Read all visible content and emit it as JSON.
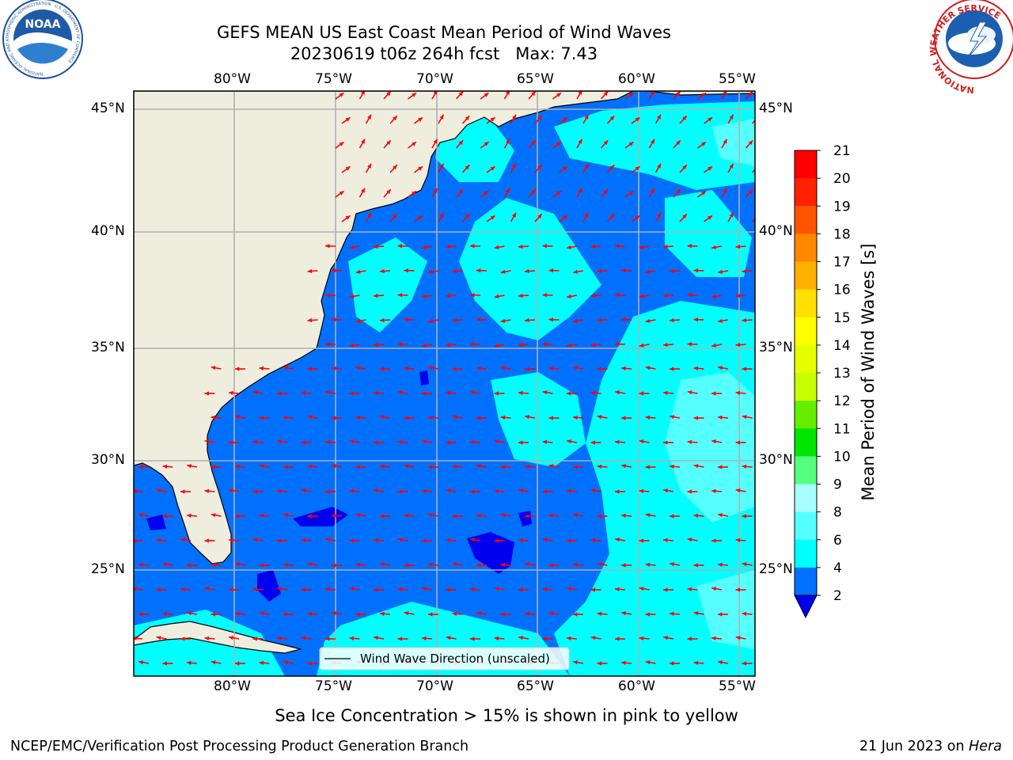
{
  "header": {
    "title_line1": "GEFS MEAN US East Coast Mean Period of Wind Waves",
    "title_line2": "20230619 t06z 264h fcst   Max: 7.43"
  },
  "logos": {
    "noaa": {
      "text": "NOAA",
      "ring_text": "NATIONAL OCEANIC AND ATMOSPHERIC ADMINISTRATION · U.S. DEPARTMENT OF COMMERCE"
    },
    "nws": {
      "ring_text": "NATIONAL WEATHER SERVICE"
    }
  },
  "map": {
    "lon_ticks": [
      "80°W",
      "75°W",
      "70°W",
      "65°W",
      "60°W",
      "55°W"
    ],
    "lat_ticks": [
      "45°N",
      "40°N",
      "35°N",
      "30°N",
      "25°N"
    ],
    "extent": {
      "lon_min": -85,
      "lon_max": -54.2,
      "lat_min": 20.5,
      "lat_max": 45.8
    },
    "legend_label": "Wind Wave Direction (unscaled)",
    "colors": {
      "land": "#efedde",
      "ocean_2_4": "#0070ff",
      "ocean_4_6": "#00ffff",
      "ocean_6_8": "#55ffff",
      "below_2": "#0000ee",
      "arrows": "#ff0000",
      "grid": "#b0b0b0"
    }
  },
  "colorbar": {
    "label": "Mean Period of Wind Waves [s]",
    "ticks": [
      "21",
      "20",
      "19",
      "18",
      "17",
      "16",
      "15",
      "14",
      "13",
      "12",
      "11",
      "10",
      "9",
      "8",
      "6",
      "4",
      "2"
    ],
    "bins": [
      {
        "range": "20-21",
        "color": "#ff0000"
      },
      {
        "range": "19-20",
        "color": "#ff2200"
      },
      {
        "range": "18-19",
        "color": "#ff5500"
      },
      {
        "range": "17-18",
        "color": "#ff8800"
      },
      {
        "range": "16-17",
        "color": "#ffb000"
      },
      {
        "range": "15-16",
        "color": "#ffe000"
      },
      {
        "range": "14-15",
        "color": "#ffff00"
      },
      {
        "range": "13-14",
        "color": "#e6ff00"
      },
      {
        "range": "12-13",
        "color": "#c8ff00"
      },
      {
        "range": "11-12",
        "color": "#66ee00"
      },
      {
        "range": "10-11",
        "color": "#00e600"
      },
      {
        "range": "9-10",
        "color": "#55ff80"
      },
      {
        "range": "8-9",
        "color": "#a8ffff"
      },
      {
        "range": "6-8",
        "color": "#55ffff"
      },
      {
        "range": "4-6",
        "color": "#00ffff"
      },
      {
        "range": "2-4",
        "color": "#0070ff"
      }
    ],
    "extend_min_color": "#0000ee"
  },
  "subtitle": "Sea Ice Concentration > 15% is shown in pink to yellow",
  "footer": {
    "left": "NCEP/EMC/Verification Post Processing Product Generation Branch",
    "right_date": "21 Jun 2023 on",
    "right_host": "Hera"
  }
}
